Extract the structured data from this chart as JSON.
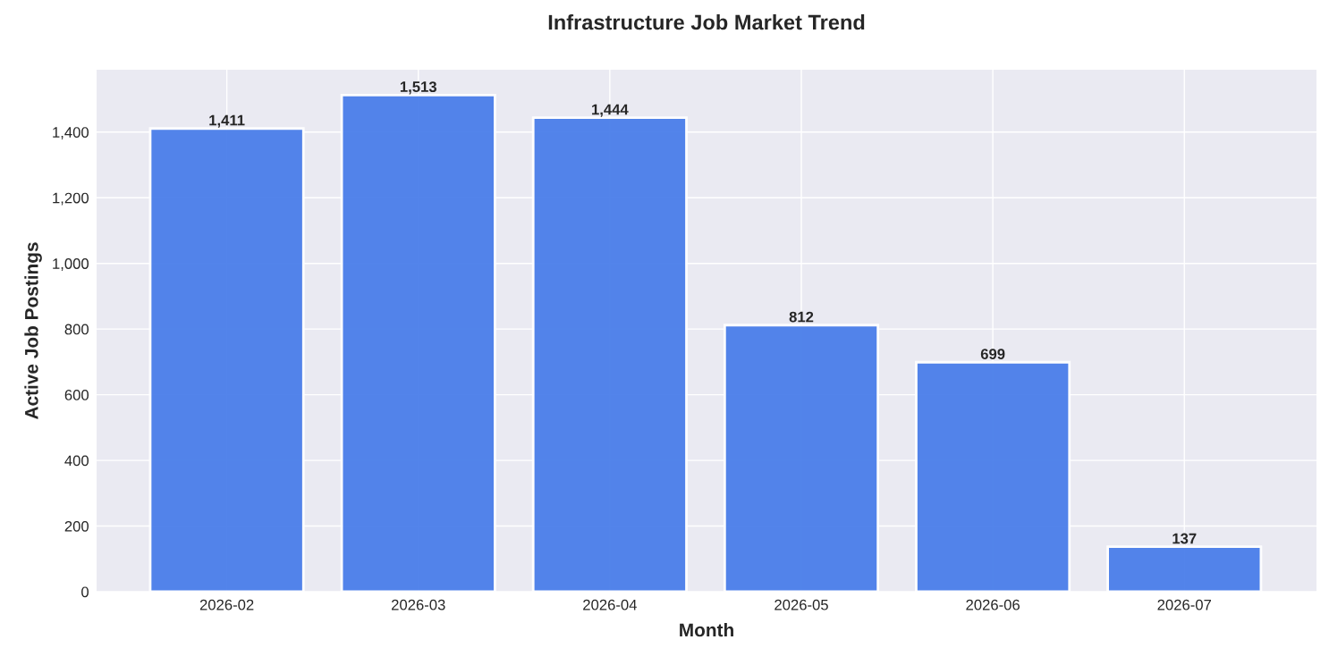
{
  "chart_data": {
    "type": "bar",
    "title": "Infrastructure Job Market Trend",
    "xlabel": "Month",
    "ylabel": "Active Job Postings",
    "categories": [
      "2026-02",
      "2026-03",
      "2026-04",
      "2026-05",
      "2026-06",
      "2026-07"
    ],
    "values": [
      1411,
      1513,
      1444,
      812,
      699,
      137
    ],
    "color": "#4a7eea",
    "value_labels": [
      "1,411",
      "1,513",
      "1,444",
      "812",
      "699",
      "137"
    ],
    "ylim": [
      0,
      1590
    ],
    "yticks": [
      0,
      200,
      {
        "value": 400,
        "label": "400"
      },
      {
        "value": 600,
        "label": "600"
      },
      {
        "value": 800,
        "label": "800"
      },
      {
        "value": 1000,
        "label": "1,000"
      },
      {
        "value": 1200,
        "label": "1,200"
      },
      {
        "value": 1400,
        "label": "1,400"
      }
    ],
    "grid": true
  }
}
